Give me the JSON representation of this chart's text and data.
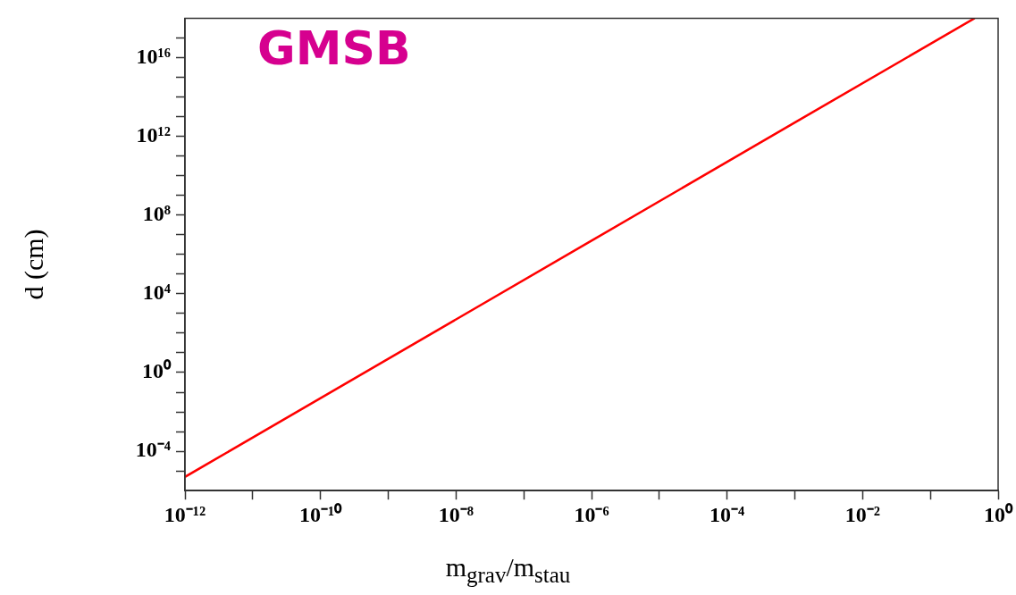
{
  "chart_data": {
    "type": "line",
    "xlabel": "m$_{grav}$/m$_{stau}$",
    "ylabel": "d (cm)",
    "annotations": [
      "GMSB"
    ],
    "log": "xy",
    "marker": "none",
    "line_style": "solid",
    "xlim": [
      1e-12,
      1
    ],
    "ylim": [
      1e-06,
      1e+18
    ],
    "xticks": [
      {
        "value": 1e-12,
        "label": "10⁻¹²"
      },
      {
        "value": 1e-11,
        "label": null
      },
      {
        "value": 1e-10,
        "label": "10⁻¹⁰"
      },
      {
        "value": 1e-09,
        "label": null
      },
      {
        "value": 1e-08,
        "label": "10⁻⁸"
      },
      {
        "value": 1e-07,
        "label": null
      },
      {
        "value": 1e-06,
        "label": "10⁻⁶"
      },
      {
        "value": 1e-05,
        "label": null
      },
      {
        "value": 0.0001,
        "label": "10⁻⁴"
      },
      {
        "value": 0.001,
        "label": null
      },
      {
        "value": 0.01,
        "label": "10⁻²"
      },
      {
        "value": 0.1,
        "label": null
      },
      {
        "value": 1,
        "label": "10⁰"
      }
    ],
    "yticks": [
      {
        "value": 1e-05,
        "label": null
      },
      {
        "value": 0.0001,
        "label": "10⁻⁴"
      },
      {
        "value": 0.001,
        "label": null
      },
      {
        "value": 0.01,
        "label": null
      },
      {
        "value": 0.1,
        "label": null
      },
      {
        "value": 1,
        "label": "10⁰"
      },
      {
        "value": 10.0,
        "label": null
      },
      {
        "value": 100.0,
        "label": null
      },
      {
        "value": 1000.0,
        "label": null
      },
      {
        "value": 10000.0,
        "label": "10⁴"
      },
      {
        "value": 100000.0,
        "label": null
      },
      {
        "value": 1000000.0,
        "label": null
      },
      {
        "value": 10000000.0,
        "label": null
      },
      {
        "value": 100000000.0,
        "label": "10⁸"
      },
      {
        "value": 1000000000.0,
        "label": null
      },
      {
        "value": 10000000000.0,
        "label": null
      },
      {
        "value": 100000000000.0,
        "label": null
      },
      {
        "value": 1000000000000.0,
        "label": "10¹²"
      },
      {
        "value": 10000000000000.0,
        "label": null
      },
      {
        "value": 100000000000000.0,
        "label": null
      },
      {
        "value": 1000000000000000.0,
        "label": null
      },
      {
        "value": 1e+16,
        "label": "10¹⁶"
      },
      {
        "value": 1e+17,
        "label": null
      }
    ],
    "series": [
      {
        "color": "#ff0000",
        "x": [
          1e-12,
          1e-09,
          1e-06,
          0.001,
          0.45
        ],
        "values": [
          5e-06,
          5,
          5000000.0,
          5000000000000.0,
          1e+18
        ]
      }
    ]
  }
}
